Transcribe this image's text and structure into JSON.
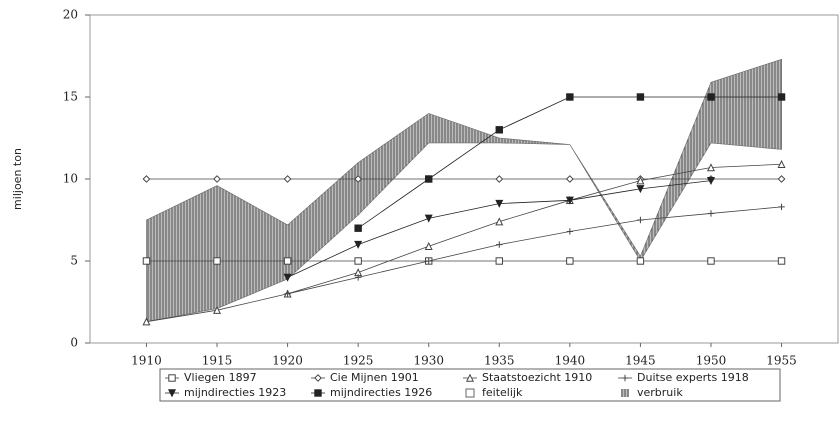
{
  "chart_data": {
    "type": "line",
    "ylabel": "miljoen ton",
    "x": [
      1910,
      1915,
      1920,
      1925,
      1930,
      1935,
      1940,
      1945,
      1950,
      1955
    ],
    "xlim": [
      1906,
      1959
    ],
    "xticks": [
      1910,
      1915,
      1920,
      1925,
      1930,
      1935,
      1940,
      1945,
      1950,
      1955
    ],
    "ylim": [
      0,
      20
    ],
    "yticks": [
      0,
      5,
      10,
      15,
      20
    ],
    "series": [
      {
        "name": "Vliegen 1897",
        "color": "#444",
        "marker": "square-open",
        "values": [
          5,
          5,
          5,
          5,
          5,
          5,
          5,
          5,
          5,
          5
        ]
      },
      {
        "name": "Cie Mijnen 1901",
        "color": "#444",
        "marker": "diamond-open",
        "values": [
          10,
          10,
          10,
          10,
          10,
          10,
          10,
          10,
          10,
          10
        ]
      },
      {
        "name": "Staatstoezicht 1910",
        "color": "#444",
        "marker": "triangle-open",
        "values": [
          1.3,
          2,
          3,
          4.3,
          5.9,
          7.4,
          8.7,
          9.9,
          10.7,
          10.9
        ]
      },
      {
        "name": "Duitse experts 1918",
        "color": "#444",
        "marker": "plus",
        "values": [
          null,
          null,
          3,
          4,
          5,
          6,
          6.8,
          7.5,
          7.9,
          8.3
        ]
      },
      {
        "name": "mijndirecties 1923",
        "color": "#222",
        "marker": "triangle-down-filled",
        "values": [
          null,
          null,
          4,
          6,
          7.6,
          8.5,
          8.7,
          9.4,
          9.9,
          null
        ]
      },
      {
        "name": "mijndirecties 1926",
        "color": "#222",
        "marker": "square-filled",
        "values": [
          null,
          null,
          null,
          7,
          10,
          13,
          15,
          15,
          15,
          15
        ]
      },
      {
        "name": "feitelijk",
        "color": "#fff",
        "marker": "band-lower",
        "values": [
          1.3,
          2.1,
          3.9,
          7.8,
          12.2,
          12.2,
          12.1,
          5,
          12.2,
          11.8
        ]
      },
      {
        "name": "verbruik",
        "color": "#666",
        "marker": "band-upper",
        "values": [
          7.5,
          9.6,
          7.2,
          11,
          14,
          12.5,
          12.1,
          5.3,
          15.9,
          17.3
        ]
      }
    ]
  }
}
